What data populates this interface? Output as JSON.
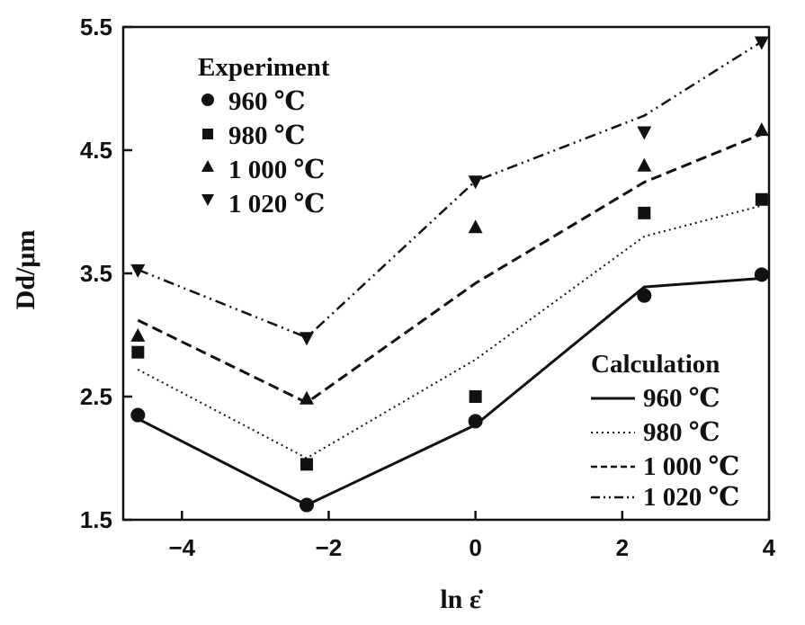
{
  "chart_data": {
    "type": "line",
    "xlabel": "ln ε̇",
    "ylabel": "Dd/μm",
    "xlim": [
      -4.8,
      4
    ],
    "ylim": [
      1.5,
      5.5
    ],
    "xticks": [
      -4,
      -2,
      0,
      2,
      4
    ],
    "xtick_labels": [
      "−4",
      "−2",
      "0",
      "2",
      "4"
    ],
    "yticks": [
      1.5,
      2.5,
      3.5,
      4.5,
      5.5
    ],
    "ytick_labels": [
      "1.5",
      "2.5",
      "3.5",
      "4.5",
      "5.5"
    ],
    "grid": false,
    "legend_experiment": {
      "position": "top-left",
      "title": "Experiment",
      "entries": [
        "960 ℃",
        "980 ℃",
        "1 000 ℃",
        "1 020 ℃"
      ]
    },
    "legend_calculation": {
      "position": "bottom-right",
      "title": "Calculation",
      "entries": [
        "960 ℃",
        "980 ℃",
        "1 000 ℃",
        "1 020 ℃"
      ]
    },
    "experiment": [
      {
        "name": "960 ℃",
        "marker": "circle",
        "x": [
          -4.6,
          -2.3,
          0,
          2.3,
          3.9
        ],
        "y": [
          2.35,
          1.62,
          2.3,
          3.32,
          3.49
        ]
      },
      {
        "name": "980 ℃",
        "marker": "square",
        "x": [
          -4.6,
          -2.3,
          0,
          2.3,
          3.9
        ],
        "y": [
          2.86,
          1.95,
          2.5,
          3.99,
          4.1
        ]
      },
      {
        "name": "1 000 ℃",
        "marker": "triangle-up",
        "x": [
          -4.6,
          -2.3,
          0,
          2.3,
          3.9
        ],
        "y": [
          2.99,
          2.48,
          3.87,
          4.37,
          4.66
        ]
      },
      {
        "name": "1 020 ℃",
        "marker": "triangle-down",
        "x": [
          -4.6,
          -2.3,
          0,
          2.3,
          3.9
        ],
        "y": [
          3.53,
          2.98,
          4.25,
          4.65,
          5.38
        ]
      }
    ],
    "calculation": [
      {
        "name": "960 ℃",
        "dash": "solid",
        "x": [
          -4.6,
          -2.3,
          0,
          2.3,
          3.9
        ],
        "y": [
          2.32,
          1.62,
          2.27,
          3.39,
          3.46
        ]
      },
      {
        "name": "980 ℃",
        "dash": "dotted",
        "x": [
          -4.6,
          -2.3,
          0,
          2.3,
          3.9
        ],
        "y": [
          2.72,
          2.0,
          2.8,
          3.8,
          4.05
        ]
      },
      {
        "name": "1 000 ℃",
        "dash": "dashed",
        "x": [
          -4.6,
          -2.3,
          0,
          2.3,
          3.9
        ],
        "y": [
          3.12,
          2.45,
          3.42,
          4.24,
          4.63
        ]
      },
      {
        "name": "1 020 ℃",
        "dash": "dash-dot-dot",
        "x": [
          -4.6,
          -2.3,
          0,
          2.3,
          3.9
        ],
        "y": [
          3.53,
          2.98,
          4.25,
          4.78,
          5.38
        ]
      }
    ]
  }
}
